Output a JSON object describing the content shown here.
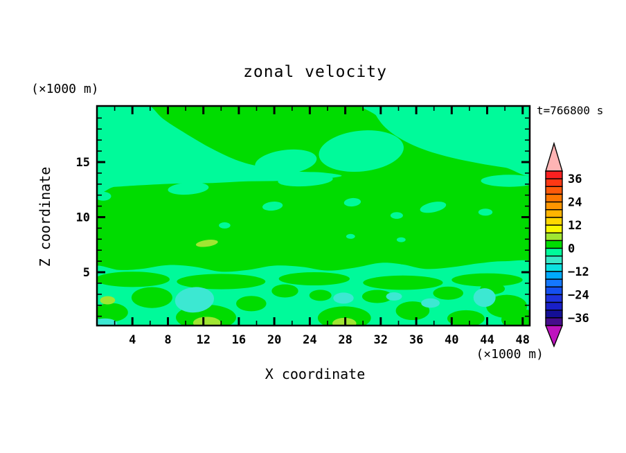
{
  "title": "zonal velocity",
  "time_label": "t=766800 s",
  "axes": {
    "x": {
      "title": "X coordinate",
      "unit": "(×1000 m)",
      "min": 0,
      "max": 48.8,
      "major_tick_values": [
        4,
        8,
        12,
        16,
        20,
        24,
        28,
        32,
        36,
        40,
        44,
        48
      ],
      "minor_tick_values": [
        2,
        6,
        10,
        14,
        18,
        22,
        26,
        30,
        34,
        38,
        42,
        46
      ]
    },
    "z": {
      "title": "Z coordinate",
      "unit": "(×1000 m)",
      "min": 0,
      "max": 20,
      "major_tick_values": [
        5,
        10,
        15
      ],
      "minor_tick_values": [
        1,
        2,
        3,
        4,
        6,
        7,
        8,
        9,
        11,
        12,
        13,
        14,
        16,
        17,
        18,
        19
      ]
    }
  },
  "colorbar": {
    "over_color": "#FFB4B4",
    "under_color": "#BE14BE",
    "labels": [
      {
        "value": 36,
        "text": "36"
      },
      {
        "value": 24,
        "text": "24"
      },
      {
        "value": 12,
        "text": "12"
      },
      {
        "value": 0,
        "text": "0"
      },
      {
        "value": -12,
        "text": "−12"
      },
      {
        "value": -24,
        "text": "−24"
      },
      {
        "value": -36,
        "text": "−36"
      }
    ],
    "segments": [
      {
        "from": 36,
        "to": 40,
        "color": "#FB2020"
      },
      {
        "from": 32,
        "to": 36,
        "color": "#FF3814"
      },
      {
        "from": 28,
        "to": 32,
        "color": "#FF5A0A"
      },
      {
        "from": 24,
        "to": 28,
        "color": "#FF7800"
      },
      {
        "from": 20,
        "to": 24,
        "color": "#FF9600"
      },
      {
        "from": 16,
        "to": 20,
        "color": "#FFB400"
      },
      {
        "from": 12,
        "to": 16,
        "color": "#FFD700"
      },
      {
        "from": 8,
        "to": 12,
        "color": "#F8F800"
      },
      {
        "from": 4,
        "to": 8,
        "color": "#A0E632"
      },
      {
        "from": 0,
        "to": 4,
        "color": "#00DC00"
      },
      {
        "from": -4,
        "to": 0,
        "color": "#00FA9A"
      },
      {
        "from": -8,
        "to": -4,
        "color": "#38E8C8"
      },
      {
        "from": -12,
        "to": -8,
        "color": "#0CE0E0"
      },
      {
        "from": -16,
        "to": -12,
        "color": "#00AAFF"
      },
      {
        "from": -20,
        "to": -16,
        "color": "#1478FF"
      },
      {
        "from": -24,
        "to": -20,
        "color": "#1450F0"
      },
      {
        "from": -28,
        "to": -24,
        "color": "#1E32DC"
      },
      {
        "from": -32,
        "to": -28,
        "color": "#1920C8"
      },
      {
        "from": -36,
        "to": -32,
        "color": "#140F96"
      },
      {
        "from": -40,
        "to": -36,
        "color": "#460D8C"
      }
    ]
  },
  "chart_data": {
    "type": "heatmap",
    "subtype": "filled-contour",
    "title": "zonal velocity",
    "xlabel": "X coordinate (×1000 m)",
    "ylabel": "Z coordinate (×1000 m)",
    "timestamp": "t=766800 s",
    "x_range": [
      0,
      48.8
    ],
    "z_range": [
      0,
      20
    ],
    "contour_interval": 4,
    "colorbar_range": [
      -40,
      40
    ],
    "colorbar_label_values": [
      36,
      24,
      12,
      0,
      -12,
      -24,
      -36
    ],
    "field_description": "Field is dominated by the 0-to-4 green band. Slightly negative (−4 to 0) spring-green regions cover the upper-left wedge, upper-right corner, scattered mid-level lenses, a wavy band near z=5, and most of the lowest 4 km, which also contains −8 to −4 turquoise pockets and small 4-to-12 yellow-green spots near the surface.",
    "palette": {
      "green": "#00DC00",
      "teal": "#00FA9A",
      "cyan": "#3CE8D2",
      "chartreuse": "#A0E632"
    },
    "background_color_key": "green",
    "shapes": [
      {
        "kind": "polygon",
        "color": "teal",
        "pts": [
          [
            -0.5,
            20.6
          ],
          [
            5,
            20.5
          ],
          [
            7.5,
            18.9
          ],
          [
            10,
            17.6
          ],
          [
            13,
            16.2
          ],
          [
            16,
            15.1
          ],
          [
            19,
            14.5
          ],
          [
            22.5,
            14.15
          ],
          [
            25.5,
            14.05
          ],
          [
            27.6,
            13.75
          ],
          [
            25,
            13.45
          ],
          [
            21,
            13.3
          ],
          [
            17,
            13.25
          ],
          [
            13,
            13.1
          ],
          [
            9,
            13.05
          ],
          [
            5,
            12.9
          ],
          [
            2,
            12.75
          ],
          [
            -0.5,
            12.65
          ]
        ]
      },
      {
        "kind": "polygon",
        "color": "teal",
        "pts": [
          [
            30.8,
            20.6
          ],
          [
            49.5,
            20.6
          ],
          [
            49.5,
            14.1
          ],
          [
            46,
            14.5
          ],
          [
            43,
            14.9
          ],
          [
            40,
            15.4
          ],
          [
            37,
            16.1
          ],
          [
            34.5,
            17.0
          ],
          [
            32.7,
            18.0
          ],
          [
            31.5,
            19.2
          ]
        ]
      },
      {
        "kind": "ellipse",
        "color": "teal",
        "x": 29.8,
        "z": 16.0,
        "rx": 4.8,
        "rz": 1.85,
        "rot": -6
      },
      {
        "kind": "ellipse",
        "color": "teal",
        "x": 21.3,
        "z": 15.0,
        "rx": 3.5,
        "rz": 1.1,
        "rot": -7
      },
      {
        "kind": "ellipse",
        "color": "teal",
        "x": 23.5,
        "z": 13.35,
        "rx": 3.1,
        "rz": 0.55,
        "rot": -3
      },
      {
        "kind": "ellipse",
        "color": "teal",
        "x": 46.5,
        "z": 13.3,
        "rx": 3.2,
        "rz": 0.55,
        "rot": 0
      },
      {
        "kind": "ellipse",
        "color": "teal",
        "x": 10.3,
        "z": 12.6,
        "rx": 2.3,
        "rz": 0.55,
        "rot": -4
      },
      {
        "kind": "ellipse",
        "color": "teal",
        "x": 3.8,
        "z": 14.2,
        "rx": 1.05,
        "rz": 0.35,
        "rot": -8
      },
      {
        "kind": "ellipse",
        "color": "teal",
        "x": 0.7,
        "z": 11.9,
        "rx": 0.9,
        "rz": 0.4,
        "rot": 0
      },
      {
        "kind": "ellipse",
        "color": "teal",
        "x": 19.8,
        "z": 11.0,
        "rx": 1.15,
        "rz": 0.4,
        "rot": -6
      },
      {
        "kind": "ellipse",
        "color": "teal",
        "x": 28.8,
        "z": 11.35,
        "rx": 0.95,
        "rz": 0.38,
        "rot": -5
      },
      {
        "kind": "ellipse",
        "color": "teal",
        "x": 33.8,
        "z": 10.15,
        "rx": 0.7,
        "rz": 0.3,
        "rot": 0
      },
      {
        "kind": "ellipse",
        "color": "teal",
        "x": 37.9,
        "z": 10.9,
        "rx": 1.5,
        "rz": 0.45,
        "rot": -12
      },
      {
        "kind": "ellipse",
        "color": "teal",
        "x": 43.8,
        "z": 10.45,
        "rx": 0.8,
        "rz": 0.32,
        "rot": 0
      },
      {
        "kind": "ellipse",
        "color": "teal",
        "x": 14.4,
        "z": 9.25,
        "rx": 0.65,
        "rz": 0.28,
        "rot": 0
      },
      {
        "kind": "ellipse",
        "color": "teal",
        "x": 28.6,
        "z": 8.25,
        "rx": 0.5,
        "rz": 0.22,
        "rot": 0
      },
      {
        "kind": "ellipse",
        "color": "teal",
        "x": 34.3,
        "z": 7.95,
        "rx": 0.5,
        "rz": 0.22,
        "rot": 0
      },
      {
        "kind": "polygon",
        "color": "teal",
        "pts": [
          [
            -0.5,
            5.45
          ],
          [
            2.5,
            5.2
          ],
          [
            5,
            5.3
          ],
          [
            8,
            5.65
          ],
          [
            11,
            5.5
          ],
          [
            14,
            5.05
          ],
          [
            17,
            5.2
          ],
          [
            20,
            5.6
          ],
          [
            23,
            5.5
          ],
          [
            26,
            5.15
          ],
          [
            29,
            5.4
          ],
          [
            32,
            5.85
          ],
          [
            34.5,
            5.7
          ],
          [
            37,
            5.3
          ],
          [
            40,
            5.45
          ],
          [
            43,
            5.8
          ],
          [
            46,
            6.0
          ],
          [
            49.5,
            5.75
          ],
          [
            49.5,
            2.5
          ],
          [
            49.5,
            -0.5
          ],
          [
            24,
            -0.5
          ],
          [
            -0.5,
            -0.5
          ],
          [
            -0.5,
            2.5
          ]
        ]
      },
      {
        "kind": "ellipse",
        "color": "green",
        "x": 4.0,
        "z": 4.35,
        "rx": 4.2,
        "rz": 0.7,
        "rot": 0
      },
      {
        "kind": "ellipse",
        "color": "green",
        "x": 14.0,
        "z": 4.15,
        "rx": 5.0,
        "rz": 0.7,
        "rot": 0
      },
      {
        "kind": "ellipse",
        "color": "green",
        "x": 24.5,
        "z": 4.4,
        "rx": 4.0,
        "rz": 0.6,
        "rot": 0
      },
      {
        "kind": "ellipse",
        "color": "green",
        "x": 34.5,
        "z": 4.05,
        "rx": 4.5,
        "rz": 0.65,
        "rot": 0
      },
      {
        "kind": "ellipse",
        "color": "green",
        "x": 44.0,
        "z": 4.3,
        "rx": 4.0,
        "rz": 0.6,
        "rot": 0
      },
      {
        "kind": "ellipse",
        "color": "green",
        "x": 1.6,
        "z": 1.35,
        "rx": 1.9,
        "rz": 0.85,
        "rot": 0
      },
      {
        "kind": "ellipse",
        "color": "green",
        "x": 6.2,
        "z": 2.7,
        "rx": 2.3,
        "rz": 0.95,
        "rot": 0
      },
      {
        "kind": "ellipse",
        "color": "green",
        "x": 12.3,
        "z": 0.9,
        "rx": 3.4,
        "rz": 1.15,
        "rot": 0
      },
      {
        "kind": "ellipse",
        "color": "green",
        "x": 17.4,
        "z": 2.15,
        "rx": 1.7,
        "rz": 0.7,
        "rot": 0
      },
      {
        "kind": "ellipse",
        "color": "green",
        "x": 21.2,
        "z": 3.3,
        "rx": 1.5,
        "rz": 0.6,
        "rot": 0
      },
      {
        "kind": "ellipse",
        "color": "green",
        "x": 25.2,
        "z": 2.9,
        "rx": 1.25,
        "rz": 0.5,
        "rot": 0
      },
      {
        "kind": "ellipse",
        "color": "green",
        "x": 27.9,
        "z": 0.85,
        "rx": 3.0,
        "rz": 1.05,
        "rot": 0
      },
      {
        "kind": "ellipse",
        "color": "green",
        "x": 31.6,
        "z": 2.8,
        "rx": 1.7,
        "rz": 0.6,
        "rot": 0
      },
      {
        "kind": "ellipse",
        "color": "green",
        "x": 35.6,
        "z": 1.5,
        "rx": 1.9,
        "rz": 0.85,
        "rot": 0
      },
      {
        "kind": "ellipse",
        "color": "green",
        "x": 39.6,
        "z": 3.1,
        "rx": 1.7,
        "rz": 0.6,
        "rot": 0
      },
      {
        "kind": "ellipse",
        "color": "green",
        "x": 41.6,
        "z": 0.8,
        "rx": 2.1,
        "rz": 0.75,
        "rot": 0
      },
      {
        "kind": "ellipse",
        "color": "green",
        "x": 46.2,
        "z": 1.9,
        "rx": 2.3,
        "rz": 1.05,
        "rot": 0
      },
      {
        "kind": "ellipse",
        "color": "green",
        "x": 47.8,
        "z": 0.7,
        "rx": 2.2,
        "rz": 0.95,
        "rot": 0
      },
      {
        "kind": "ellipse",
        "color": "green",
        "x": 44.6,
        "z": 3.5,
        "rx": 1.4,
        "rz": 0.5,
        "rot": 0
      },
      {
        "kind": "ellipse",
        "color": "cyan",
        "x": 11.0,
        "z": 2.5,
        "rx": 2.2,
        "rz": 1.15,
        "rot": -5
      },
      {
        "kind": "ellipse",
        "color": "cyan",
        "x": 0.9,
        "z": 0.3,
        "rx": 1.4,
        "rz": 0.5,
        "rot": 0
      },
      {
        "kind": "ellipse",
        "color": "cyan",
        "x": 27.8,
        "z": 2.65,
        "rx": 1.15,
        "rz": 0.5,
        "rot": 0
      },
      {
        "kind": "ellipse",
        "color": "cyan",
        "x": 33.5,
        "z": 2.8,
        "rx": 0.9,
        "rz": 0.38,
        "rot": 0
      },
      {
        "kind": "ellipse",
        "color": "cyan",
        "x": 37.6,
        "z": 2.2,
        "rx": 1.05,
        "rz": 0.42,
        "rot": 0
      },
      {
        "kind": "ellipse",
        "color": "cyan",
        "x": 43.7,
        "z": 2.7,
        "rx": 1.25,
        "rz": 0.85,
        "rot": 0
      },
      {
        "kind": "ellipse",
        "color": "chartreuse",
        "x": 12.4,
        "z": 7.62,
        "rx": 1.25,
        "rz": 0.3,
        "rot": -8
      },
      {
        "kind": "ellipse",
        "color": "chartreuse",
        "x": 1.2,
        "z": 2.45,
        "rx": 0.85,
        "rz": 0.38,
        "rot": 0
      },
      {
        "kind": "ellipse",
        "color": "chartreuse",
        "x": 12.4,
        "z": 0.4,
        "rx": 1.55,
        "rz": 0.55,
        "rot": 0
      },
      {
        "kind": "ellipse",
        "color": "chartreuse",
        "x": 27.9,
        "z": 0.35,
        "rx": 1.35,
        "rz": 0.5,
        "rot": 0
      }
    ]
  }
}
